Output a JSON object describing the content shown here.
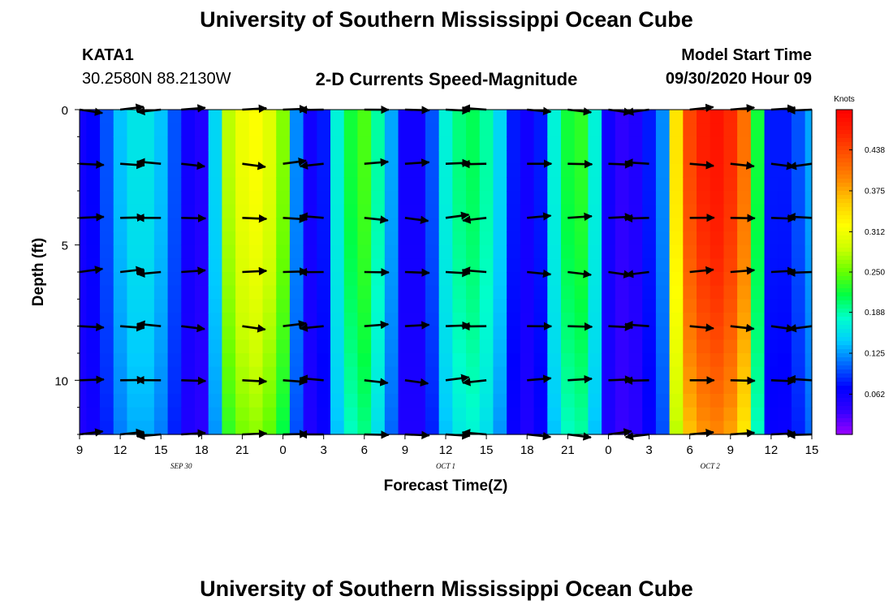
{
  "header": {
    "title": "University of Southern Mississippi Ocean Cube",
    "station": "KATA1",
    "coords": "30.2580N 88.2130W",
    "subtitle": "2-D Currents Speed-Magnitude",
    "model_label": "Model Start Time",
    "model_time": "09/30/2020 Hour 09"
  },
  "footer": {
    "title": "University of Southern Mississippi Ocean Cube"
  },
  "chart_data": {
    "type": "heatmap",
    "title": "2-D Currents Speed-Magnitude",
    "xlabel": "Forecast Time(Z)",
    "ylabel": "Depth (ft)",
    "x_hours": [
      0,
      54
    ],
    "y_depth_ft": [
      0,
      12
    ],
    "y_reversed": true,
    "x_tick_labels": [
      "9",
      "12",
      "15",
      "18",
      "21",
      "0",
      "3",
      "6",
      "9",
      "12",
      "15",
      "18",
      "21",
      "0",
      "3",
      "6",
      "9",
      "12",
      "15"
    ],
    "x_tick_hours": [
      0,
      3,
      6,
      9,
      12,
      15,
      18,
      21,
      24,
      27,
      30,
      33,
      36,
      39,
      42,
      45,
      48,
      51,
      54
    ],
    "date_labels": [
      {
        "label": "SEP 30",
        "hour": 7.5
      },
      {
        "label": "OCT 1",
        "hour": 27
      },
      {
        "label": "OCT 2",
        "hour": 46.5
      }
    ],
    "y_tick_labels": [
      "0",
      "5",
      "10"
    ],
    "y_tick_values": [
      0,
      5,
      10
    ],
    "colorbar": {
      "unit": "Knots",
      "ticks": [
        "0.062",
        "0.125",
        "0.188",
        "0.250",
        "0.312",
        "0.375",
        "0.438"
      ],
      "tick_values": [
        0.062,
        0.125,
        0.188,
        0.25,
        0.312,
        0.375,
        0.438
      ],
      "min": 0.0,
      "max": 0.5,
      "colors": [
        "#9900ff",
        "#3300ff",
        "#0000ff",
        "#0066ff",
        "#00ccff",
        "#00ffcc",
        "#00ff44",
        "#66ff00",
        "#ccff00",
        "#ffff00",
        "#ffcc00",
        "#ff8800",
        "#ff5500",
        "#ff2200",
        "#ff0000"
      ]
    },
    "speed_profile_hours": [
      0,
      1,
      2,
      3,
      4,
      5,
      6,
      7,
      8,
      9,
      10,
      11,
      12,
      13,
      14,
      15,
      16,
      17,
      18,
      19,
      20,
      21,
      22,
      23,
      24,
      25,
      26,
      27,
      28,
      29,
      30,
      31,
      32,
      33,
      34,
      35,
      36,
      37,
      38,
      39,
      40,
      41,
      42,
      43,
      44,
      45,
      46,
      47,
      48,
      49,
      50,
      51,
      52,
      53,
      54
    ],
    "speed_profile_knots": [
      0.05,
      0.06,
      0.1,
      0.14,
      0.16,
      0.16,
      0.14,
      0.1,
      0.05,
      0.04,
      0.15,
      0.28,
      0.31,
      0.32,
      0.3,
      0.26,
      0.12,
      0.05,
      0.08,
      0.17,
      0.22,
      0.24,
      0.19,
      0.13,
      0.05,
      0.05,
      0.1,
      0.17,
      0.2,
      0.21,
      0.19,
      0.15,
      0.08,
      0.05,
      0.07,
      0.17,
      0.22,
      0.23,
      0.17,
      0.05,
      0.03,
      0.04,
      0.07,
      0.12,
      0.34,
      0.44,
      0.47,
      0.48,
      0.46,
      0.41,
      0.22,
      0.07,
      0.08,
      0.1,
      0.13
    ],
    "vector_depths_ft": [
      0,
      2,
      4,
      6,
      8,
      10,
      12
    ],
    "vector_hours": [
      0,
      3,
      6,
      7.5,
      12,
      15,
      18,
      21,
      24,
      27,
      30,
      33,
      36,
      39,
      42,
      45,
      48,
      51,
      54
    ]
  }
}
